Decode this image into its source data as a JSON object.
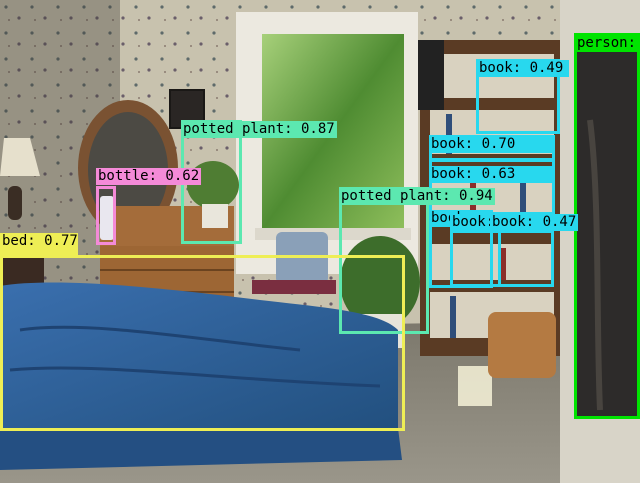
{
  "image": {
    "description_free": true,
    "colors": {
      "wallpaper": "#c9c3b0",
      "window_glass": "#6fae4a",
      "window_frame": "#e8e6de",
      "bedspread": "#2f5f99",
      "dresser": "#a66e3c",
      "floor": "#8a8578",
      "shelf": "#5a3b24"
    }
  },
  "detections": [
    {
      "label": "person:",
      "color": "#00e400"
    },
    {
      "label": "book: 0.49",
      "color": "#28d8ee"
    },
    {
      "label": "potted plant: 0.87",
      "color": "#5ce8b0"
    },
    {
      "label": "book: 0.70",
      "color": "#28d8ee"
    },
    {
      "label": "book: 0.63",
      "color": "#28d8ee"
    },
    {
      "label": "bottle: 0.62",
      "color": "#f48ad8"
    },
    {
      "label": "potted plant: 0.94",
      "color": "#5ce8b0"
    },
    {
      "label": "book:",
      "color": "#28d8ee"
    },
    {
      "label": "book:",
      "color": "#28d8ee"
    },
    {
      "label": "book: 0.47",
      "color": "#28d8ee"
    },
    {
      "label": "bed: 0.77",
      "color": "#eeee55"
    }
  ]
}
